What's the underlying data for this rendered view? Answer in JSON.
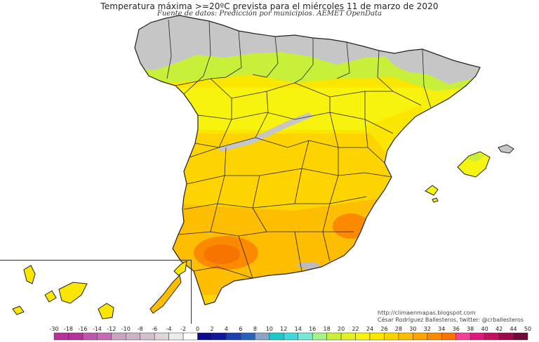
{
  "title": "Temperatura máxima >=20ºC prevista para el miércoles 11 de marzo de 2020",
  "subtitle": "Fuente de datos: Predicción por municipios. AEMET OpenData",
  "credits": {
    "blog": "http://climaenmapas.blogspot.com",
    "author": "César Rodríguez Ballesteros, twitter: @crballesteros"
  },
  "legend": {
    "labels": [
      "-30",
      "-18",
      "-16",
      "-14",
      "-12",
      "-10",
      "-8",
      "-6",
      "-4",
      "-2",
      "0",
      "2",
      "4",
      "6",
      "8",
      "10",
      "12",
      "14",
      "16",
      "18",
      "20",
      "22",
      "24",
      "26",
      "28",
      "30",
      "32",
      "34",
      "36",
      "38",
      "40",
      "42",
      "44",
      "50"
    ],
    "colors": [
      "#b4339b",
      "#b4339b",
      "#bd57ab",
      "#c46cb6",
      "#c9a4bf",
      "#ccb2c5",
      "#d3bfcd",
      "#ded5db",
      "#ececec",
      "#ffffff",
      "#0c0c8a",
      "#0f1a99",
      "#1c3fad",
      "#2a61b8",
      "#8aa5c4",
      "#1fc8c8",
      "#3fd9d9",
      "#7ae8d6",
      "#a8f08a",
      "#c8f03a",
      "#e4f020",
      "#f6f410",
      "#fbe600",
      "#fdd400",
      "#fdbd00",
      "#fca400",
      "#fb8a00",
      "#f77400",
      "#f3419a",
      "#e2157c",
      "#c20f62",
      "#9c0a48",
      "#6e0a35"
    ]
  },
  "map": {
    "temperature_zones": [
      {
        "zone": "north-coast",
        "range": "< 20",
        "color": "#c6c6c6"
      },
      {
        "zone": "north-interior",
        "range": "20-22",
        "color": "#c8f03a"
      },
      {
        "zone": "northern-plateau",
        "range": "22-24",
        "color": "#f6f410"
      },
      {
        "zone": "central",
        "range": "24-26",
        "color": "#fbe600"
      },
      {
        "zone": "south-central",
        "range": "26-28",
        "color": "#fdd400"
      },
      {
        "zone": "south",
        "range": "28-30",
        "color": "#fdbd00"
      },
      {
        "zone": "guadalquivir-valley",
        "range": "30-32",
        "color": "#fb8a00"
      },
      {
        "zone": "murcia",
        "range": "30-32",
        "color": "#fb8a00"
      }
    ]
  }
}
